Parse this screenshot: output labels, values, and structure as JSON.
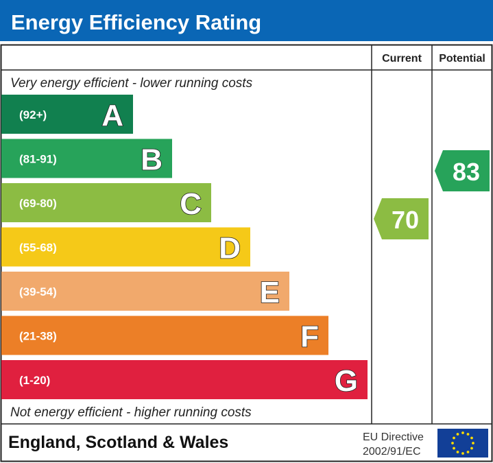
{
  "chart_data": {
    "type": "bar",
    "title": "Energy Efficiency Rating",
    "columns": [
      "Current",
      "Potential"
    ],
    "top_note": "Very energy efficient - lower running costs",
    "bottom_note": "Not energy efficient - higher running costs",
    "bands": [
      {
        "letter": "A",
        "range": "(92+)",
        "color": "#11804f"
      },
      {
        "letter": "B",
        "range": "(81-91)",
        "color": "#27a35a"
      },
      {
        "letter": "C",
        "range": "(69-80)",
        "color": "#8cbc43"
      },
      {
        "letter": "D",
        "range": "(55-68)",
        "color": "#f5c918"
      },
      {
        "letter": "E",
        "range": "(39-54)",
        "color": "#f1a96c"
      },
      {
        "letter": "F",
        "range": "(21-38)",
        "color": "#ec7f27"
      },
      {
        "letter": "G",
        "range": "(1-20)",
        "color": "#e0203f"
      }
    ],
    "current": {
      "value": 70,
      "band": "C",
      "color": "#8cbc43"
    },
    "potential": {
      "value": 83,
      "band": "B",
      "color": "#27a35a"
    }
  },
  "footer": {
    "region": "England, Scotland & Wales",
    "directive_line1": "EU Directive",
    "directive_line2": "2002/91/EC",
    "flag": "eu-flag-icon"
  },
  "colors": {
    "header": "#0a66b5",
    "eu_blue": "#123f97",
    "eu_star": "#ffdd00"
  }
}
